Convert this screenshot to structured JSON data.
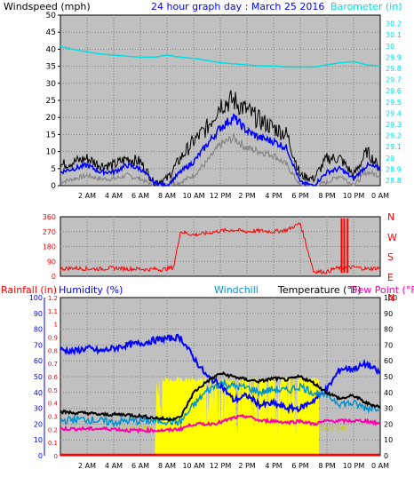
{
  "colors": {
    "background": "#ffffff",
    "plot_bg": "#c0c0c0",
    "windspeed": "#000000",
    "windspeed_avg": "#0000ff",
    "windspeed_min": "#808080",
    "barometer": "#00e0e0",
    "wind_dir": "#ff0000",
    "rainfall": "#ff0000",
    "humidity": "#0000ff",
    "windchill": "#0090d0",
    "temperature": "#000000",
    "dew_point": "#ff00aa",
    "sun": "#ffff00",
    "sun_text": "#c8c800"
  },
  "chart_data": [
    {
      "type": "line",
      "title": "24 hour graph day : March 25 2016",
      "ylabel": "Windspeed (mph)",
      "y2label": "Barometer (in)",
      "ylim": [
        0,
        50
      ],
      "y_ticks": [
        "0",
        "5",
        "10",
        "15",
        "20",
        "25",
        "30",
        "35",
        "40",
        "45",
        "50"
      ],
      "y2lim": [
        28.8,
        30.3
      ],
      "y2_ticks": [
        "28.8",
        "28.9",
        "29",
        "29.1",
        "29.2",
        "29.3",
        "29.4",
        "29.5",
        "29.6",
        "29.7",
        "29.8",
        "29.9",
        "30",
        "30.1",
        "30.2"
      ],
      "x_ticks": [
        "2 AM",
        "4 AM",
        "6 AM",
        "8 AM",
        "10 AM",
        "12 PM",
        "2 PM",
        "4 PM",
        "6 PM",
        "8 PM",
        "10 PM",
        "0 AM"
      ],
      "x_hours": [
        0,
        1,
        2,
        3,
        4,
        5,
        6,
        7,
        8,
        9,
        10,
        11,
        12,
        13,
        14,
        15,
        16,
        17,
        18,
        19,
        20,
        21,
        22,
        23,
        24
      ],
      "series": [
        {
          "name": "Windspeed (mph)",
          "role": "gust",
          "values": [
            6,
            7,
            8,
            6,
            6,
            8,
            7,
            1,
            2,
            8,
            13,
            17,
            24,
            25,
            22,
            19,
            17,
            15,
            3,
            2,
            8,
            8,
            3,
            10,
            5
          ]
        },
        {
          "name": "average",
          "role": "avg",
          "values": [
            4,
            5,
            6,
            4,
            4,
            6,
            5,
            1,
            0,
            4,
            7,
            12,
            17,
            20,
            16,
            14,
            13,
            11,
            1,
            0,
            4,
            5,
            2,
            6,
            5
          ]
        },
        {
          "name": "minimum",
          "role": "min",
          "values": [
            1,
            2,
            3,
            2,
            2,
            3,
            2,
            0,
            0,
            1,
            3,
            7,
            12,
            14,
            11,
            10,
            9,
            6,
            0,
            0,
            1,
            3,
            0,
            4,
            3
          ]
        },
        {
          "name": "Barometer (in)",
          "axis": "y2",
          "values": [
            30.03,
            30.0,
            29.98,
            29.96,
            29.95,
            29.94,
            29.93,
            29.93,
            29.95,
            29.93,
            29.92,
            29.9,
            29.88,
            29.87,
            29.86,
            29.85,
            29.85,
            29.84,
            29.84,
            29.84,
            29.86,
            29.88,
            29.89,
            29.86,
            29.85
          ]
        }
      ]
    },
    {
      "type": "line",
      "ylim": [
        0,
        360
      ],
      "y_ticks": [
        "0",
        "90",
        "180",
        "270",
        "360"
      ],
      "y2_ticks": [
        "N",
        "E",
        "S",
        "W",
        "N"
      ],
      "x_hours": [
        0,
        1,
        2,
        3,
        4,
        5,
        6,
        6.5,
        7,
        7.5,
        8,
        8.5,
        9,
        10,
        11,
        12,
        13,
        14,
        15,
        16,
        17,
        18,
        19,
        20,
        20.5,
        21,
        22,
        23,
        24
      ],
      "series": [
        {
          "name": "wind direction",
          "values": [
            45,
            50,
            45,
            45,
            50,
            45,
            45,
            40,
            45,
            40,
            45,
            55,
            270,
            250,
            260,
            275,
            280,
            270,
            275,
            270,
            280,
            320,
            30,
            25,
            45,
            50,
            55,
            45,
            50
          ]
        }
      ]
    },
    {
      "type": "line",
      "ylabel": "Rainfall (in)",
      "ylabel2": "Humidity (%)",
      "y2label": "Temperature (°F)",
      "y2label2": "Dew Point (°F)",
      "legend": [
        "Windchill"
      ],
      "ylim": [
        0,
        100
      ],
      "y_ticks": [
        "0",
        "10",
        "20",
        "30",
        "40",
        "50",
        "60",
        "70",
        "80",
        "90",
        "100"
      ],
      "rain_ticks": [
        "0",
        "0.1",
        "0.2",
        "0.3",
        "0.4",
        "0.5",
        "0.6",
        "0.7",
        "0.8",
        "0.9",
        "1",
        "1.1",
        "1.2"
      ],
      "y2_ticks": [
        "0",
        "10",
        "20",
        "30",
        "40",
        "50",
        "60",
        "70",
        "80",
        "90",
        "100"
      ],
      "annotations": [
        "Sun Rise",
        "Sun Set"
      ],
      "sun_hours": [
        7.1,
        19.4
      ],
      "x_hours": [
        0,
        1,
        2,
        3,
        4,
        5,
        6,
        7,
        8,
        9,
        10,
        11,
        12,
        13,
        14,
        15,
        16,
        17,
        18,
        19,
        20,
        21,
        22,
        23,
        24
      ],
      "series": [
        {
          "name": "Humidity (%)",
          "values": [
            67,
            66,
            68,
            66,
            68,
            70,
            71,
            73,
            74,
            75,
            62,
            50,
            45,
            35,
            38,
            32,
            33,
            30,
            30,
            35,
            42,
            55,
            55,
            58,
            52
          ]
        },
        {
          "name": "Temperature (°F)",
          "values": [
            28,
            27,
            27,
            26,
            26,
            26,
            25,
            24,
            23,
            24,
            40,
            47,
            52,
            50,
            48,
            47,
            49,
            48,
            50,
            46,
            40,
            36,
            38,
            33,
            31
          ]
        },
        {
          "name": "Windchill",
          "values": [
            22,
            23,
            23,
            22,
            21,
            22,
            22,
            22,
            22,
            21,
            32,
            41,
            46,
            44,
            43,
            40,
            42,
            41,
            44,
            40,
            38,
            33,
            33,
            30,
            31
          ]
        },
        {
          "name": "Dew Point (°F)",
          "values": [
            17,
            17,
            17,
            17,
            17,
            16,
            16,
            16,
            16,
            17,
            20,
            20,
            21,
            24,
            25,
            22,
            22,
            21,
            22,
            20,
            22,
            22,
            22,
            22,
            20
          ]
        },
        {
          "name": "Rainfall (in)",
          "values": [
            0,
            0,
            0,
            0,
            0,
            0,
            0,
            0,
            0,
            0,
            0,
            0,
            0,
            0,
            0,
            0,
            0,
            0,
            0,
            0,
            0,
            0,
            0,
            0,
            0
          ]
        }
      ]
    }
  ]
}
